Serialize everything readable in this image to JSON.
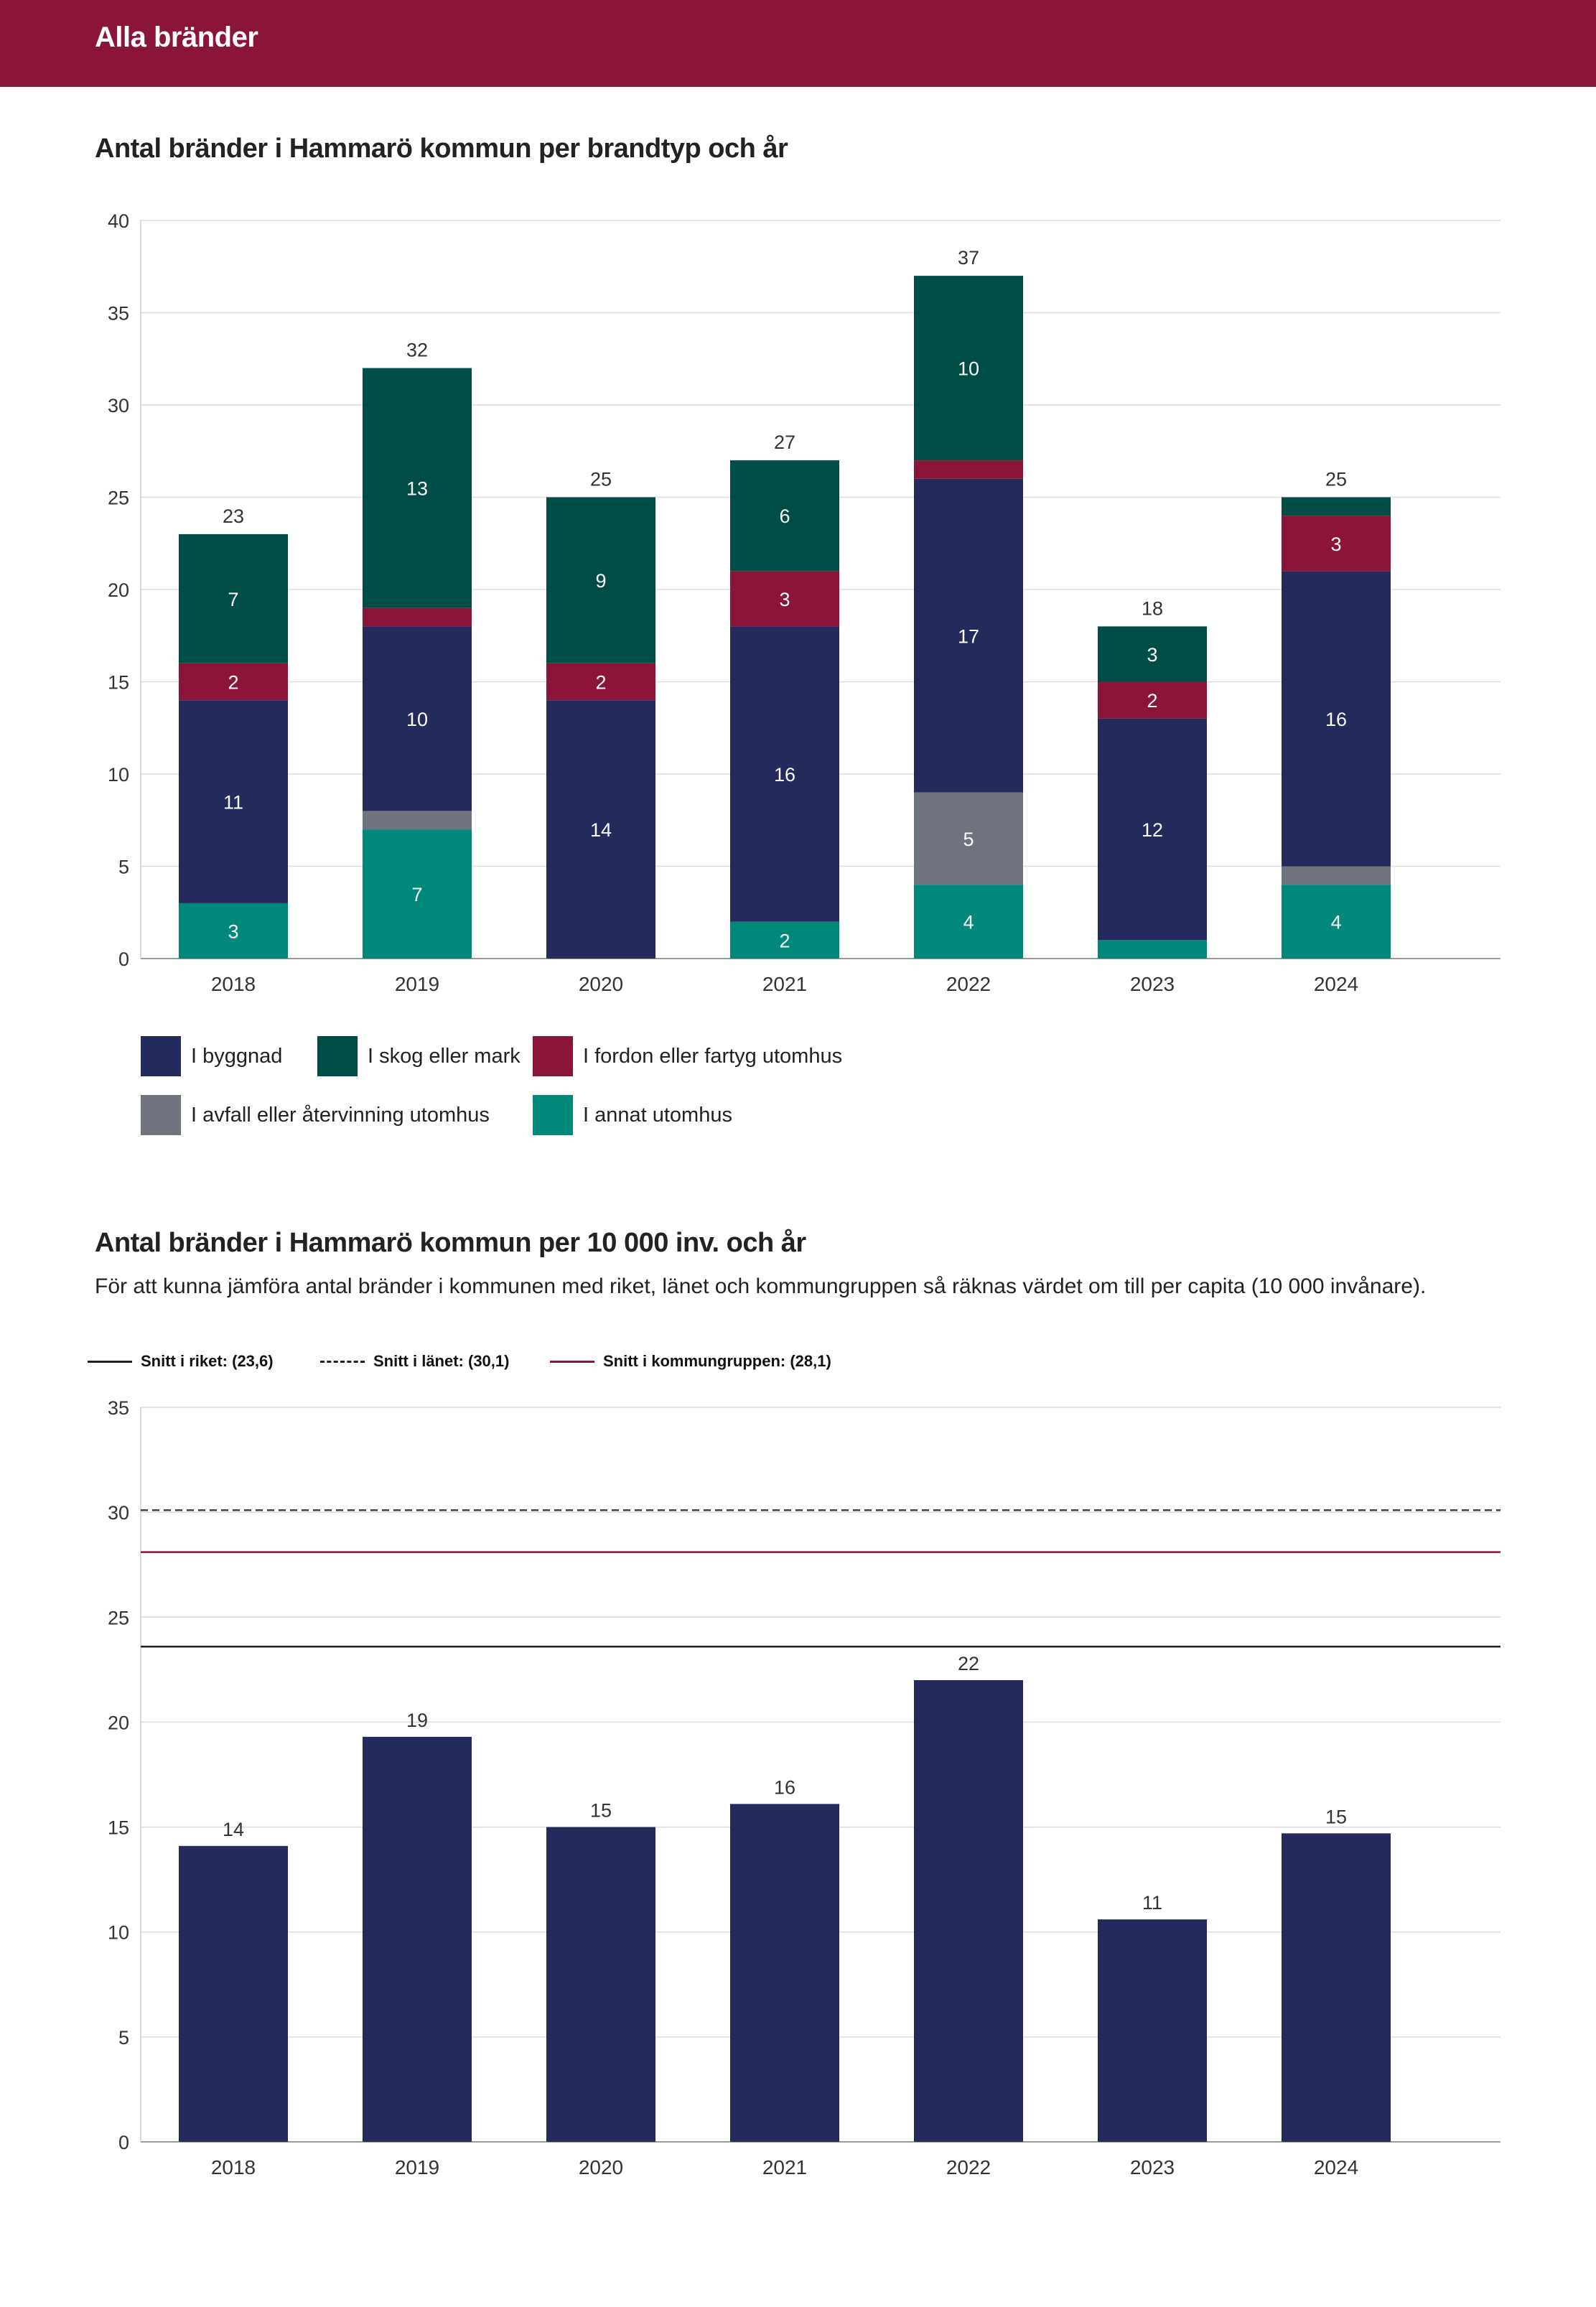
{
  "header": {
    "title": "Alla bränder"
  },
  "colors": {
    "header_bg": "#8b1538",
    "byggnad": "#252a5c",
    "skog": "#004d45",
    "fordon": "#8b1538",
    "avfall": "#6e737d",
    "annat": "#00897b",
    "per_capita_bar": "#252a5c",
    "riket_line": "#222222",
    "lanet_line": "#444444",
    "kommungrupp_line": "#8b1538"
  },
  "chart1": {
    "title": "Antal bränder i Hammarö kommun per brandtyp och år"
  },
  "chart2": {
    "title": "Antal bränder i Hammarö kommun per 10 000 inv. och år",
    "description": "För att kunna jämföra antal bränder i kommunen med riket, länet och kommungruppen så räknas värdet om till per capita (10 000 invånare).",
    "legend": [
      {
        "key": "riket",
        "label": "Snitt i riket: (23,6)"
      },
      {
        "key": "lanet",
        "label": "Snitt i länet: (30,1)"
      },
      {
        "key": "kommungrupp",
        "label": "Snitt i kommungruppen: (28,1)"
      }
    ]
  },
  "chart_data": [
    {
      "type": "bar",
      "stacked": true,
      "title": "Antal bränder i Hammarö kommun per brandtyp och år",
      "xlabel": "",
      "ylabel": "",
      "ylim": [
        0,
        40
      ],
      "yticks": [
        0,
        5,
        10,
        15,
        20,
        25,
        30,
        35,
        40
      ],
      "grid": true,
      "categories": [
        "2018",
        "2019",
        "2020",
        "2021",
        "2022",
        "2023",
        "2024"
      ],
      "totals": [
        23,
        32,
        25,
        27,
        37,
        18,
        25
      ],
      "series": [
        {
          "key": "annat",
          "name": "I annat utomhus",
          "values": [
            3,
            7,
            0,
            2,
            4,
            1,
            4
          ],
          "labels": [
            "3",
            "7",
            "",
            "2",
            "4",
            "",
            "4"
          ]
        },
        {
          "key": "avfall",
          "name": "I avfall eller återvinning utomhus",
          "values": [
            0,
            1,
            0,
            0,
            5,
            0,
            1
          ],
          "labels": [
            "",
            "",
            "",
            "",
            "5",
            "",
            ""
          ]
        },
        {
          "key": "byggnad",
          "name": "I byggnad",
          "values": [
            11,
            10,
            14,
            16,
            17,
            12,
            16
          ],
          "labels": [
            "11",
            "10",
            "14",
            "16",
            "17",
            "12",
            "16"
          ]
        },
        {
          "key": "fordon",
          "name": "I fordon eller fartyg utomhus",
          "values": [
            2,
            1,
            2,
            3,
            1,
            2,
            3
          ],
          "labels": [
            "2",
            "",
            "2",
            "3",
            "",
            "2",
            "3"
          ]
        },
        {
          "key": "skog",
          "name": "I skog eller mark",
          "values": [
            7,
            13,
            9,
            6,
            10,
            3,
            1
          ],
          "labels": [
            "7",
            "13",
            "9",
            "6",
            "10",
            "3",
            ""
          ]
        }
      ],
      "legend": [
        {
          "key": "byggnad",
          "label": "I byggnad"
        },
        {
          "key": "skog",
          "label": "I skog eller mark"
        },
        {
          "key": "fordon",
          "label": "I fordon eller fartyg utomhus"
        },
        {
          "key": "avfall",
          "label": "I avfall eller återvinning utomhus"
        },
        {
          "key": "annat",
          "label": "I annat utomhus"
        }
      ]
    },
    {
      "type": "bar",
      "title": "Antal bränder i Hammarö kommun per 10 000 inv. och år",
      "xlabel": "",
      "ylabel": "",
      "ylim": [
        0,
        35
      ],
      "yticks": [
        0,
        5,
        10,
        15,
        20,
        25,
        30,
        35
      ],
      "grid": true,
      "categories": [
        "2018",
        "2019",
        "2020",
        "2021",
        "2022",
        "2023",
        "2024"
      ],
      "values": [
        14.1,
        19.3,
        15.0,
        16.1,
        22.0,
        10.6,
        14.7
      ],
      "value_labels": [
        "14",
        "19",
        "15",
        "16",
        "22",
        "11",
        "15"
      ],
      "reference_lines": [
        {
          "key": "riket",
          "name": "Snitt i riket",
          "value": 23.6,
          "style": "solid"
        },
        {
          "key": "lanet",
          "name": "Snitt i länet",
          "value": 30.1,
          "style": "dashed"
        },
        {
          "key": "kommungrupp",
          "name": "Snitt i kommungruppen",
          "value": 28.1,
          "style": "solid"
        }
      ]
    }
  ]
}
